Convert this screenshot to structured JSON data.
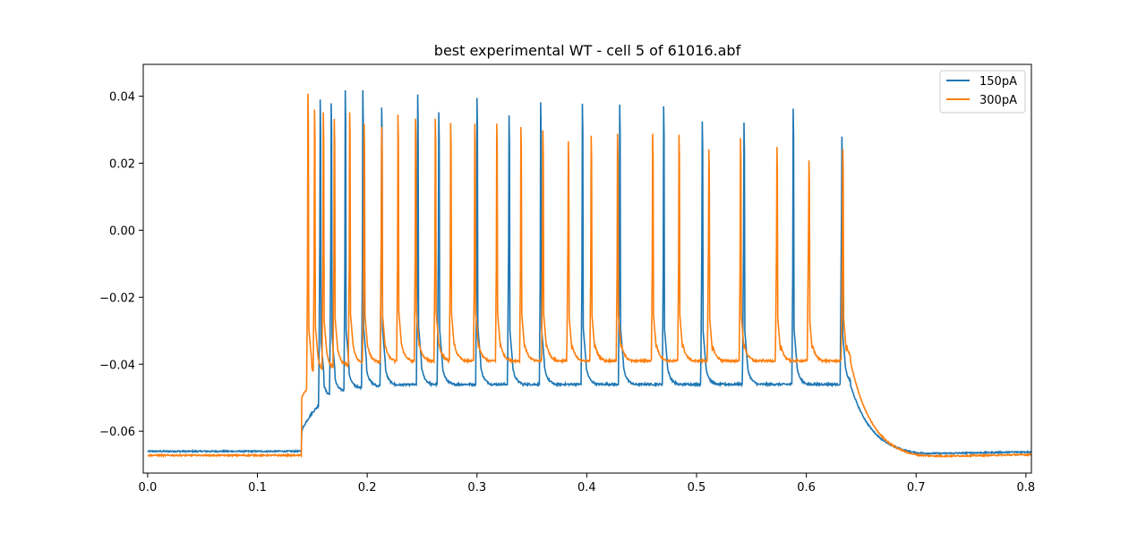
{
  "chart_data": {
    "type": "line",
    "title": "best experimental WT - cell 5 of 61016.abf",
    "xlabel": "",
    "ylabel": "",
    "xlim": [
      -0.004,
      0.805
    ],
    "ylim": [
      -0.0725,
      0.0495
    ],
    "x_ticks": [
      0.0,
      0.1,
      0.2,
      0.3,
      0.4,
      0.5,
      0.6,
      0.7,
      0.8
    ],
    "x_tick_labels": [
      "0.0",
      "0.1",
      "0.2",
      "0.3",
      "0.4",
      "0.5",
      "0.6",
      "0.7",
      "0.8"
    ],
    "y_ticks": [
      -0.06,
      -0.04,
      -0.02,
      0.0,
      0.02,
      0.04
    ],
    "y_tick_labels": [
      "−0.06",
      "−0.04",
      "−0.02",
      "0.00",
      "0.02",
      "0.04"
    ],
    "legend_position": "top-right",
    "grid": false,
    "series": [
      {
        "name": "150pA",
        "color": "#1f77b4",
        "baseline_pre": -0.066,
        "stim_on": 0.14,
        "stim_off": 0.64,
        "trough_start": -0.06,
        "trough_steady": -0.046,
        "end_value": -0.066,
        "min_after": -0.0675,
        "spike_times": [
          0.157,
          0.167,
          0.18,
          0.196,
          0.213,
          0.246,
          0.265,
          0.3,
          0.329,
          0.358,
          0.396,
          0.43,
          0.47,
          0.505,
          0.543,
          0.588,
          0.632
        ],
        "spike_peaks": [
          0.0438,
          0.0425,
          0.0418,
          0.0418,
          0.041,
          0.0405,
          0.0395,
          0.0395,
          0.0385,
          0.0382,
          0.0378,
          0.0375,
          0.037,
          0.0366,
          0.0363,
          0.0363,
          0.0362
        ]
      },
      {
        "name": "300pA",
        "color": "#ff7f0e",
        "baseline_pre": -0.0672,
        "stim_on": 0.14,
        "stim_off": 0.64,
        "trough_start": -0.05,
        "trough_steady": -0.039,
        "end_value": -0.0668,
        "min_after": -0.0685,
        "spike_times": [
          0.146,
          0.152,
          0.16,
          0.17,
          0.184,
          0.197,
          0.213,
          0.228,
          0.244,
          0.262,
          0.276,
          0.298,
          0.318,
          0.34,
          0.36,
          0.383,
          0.404,
          0.428,
          0.46,
          0.484,
          0.511,
          0.54,
          0.573,
          0.602,
          0.633
        ],
        "spike_peaks": [
          0.0408,
          0.036,
          0.0352,
          0.0332,
          0.0352,
          0.0355,
          0.0345,
          0.0345,
          0.0333,
          0.0333,
          0.032,
          0.0318,
          0.0318,
          0.0308,
          0.0298,
          0.03,
          0.0282,
          0.0288,
          0.0288,
          0.0285,
          0.0275,
          0.0275,
          0.0282,
          0.0275,
          0.0275
        ]
      }
    ]
  }
}
